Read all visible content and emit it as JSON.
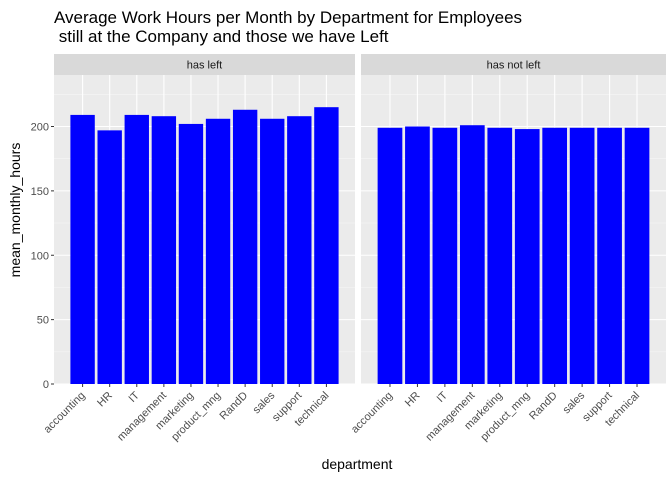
{
  "chart_data": {
    "type": "bar",
    "title_lines": [
      "Average Work Hours per Month by Department for Employees",
      " still at the Company and those we have Left"
    ],
    "xlabel": "department",
    "ylabel": "mean_monthly_hours",
    "ylim": [
      0,
      240
    ],
    "yticks": [
      0,
      50,
      100,
      150,
      200
    ],
    "grid": true,
    "bar_color": "#0000FF",
    "panel_bg": "#EBEBEB",
    "strip_bg": "#D9D9D9",
    "categories": [
      "accounting",
      "HR",
      "IT",
      "management",
      "marketing",
      "product_mng",
      "RandD",
      "sales",
      "support",
      "technical"
    ],
    "facets": [
      {
        "label": "has left",
        "values": [
          209,
          197,
          209,
          208,
          202,
          206,
          213,
          206,
          208,
          215
        ]
      },
      {
        "label": "has not left",
        "values": [
          199,
          200,
          199,
          201,
          199,
          198,
          199,
          199,
          199,
          199
        ]
      }
    ]
  }
}
